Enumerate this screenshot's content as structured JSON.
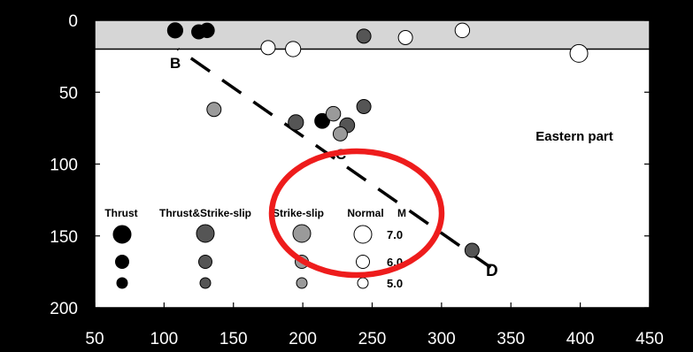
{
  "chart_data": {
    "type": "scatter",
    "title": "",
    "xlabel": "",
    "ylabel": "",
    "xlim": [
      50,
      450
    ],
    "ylim": [
      200,
      0
    ],
    "xticks": [
      "50",
      "100",
      "150",
      "200",
      "250",
      "300",
      "350",
      "400",
      "450"
    ],
    "yticks": [
      "0",
      "50",
      "100",
      "150",
      "200"
    ],
    "annotations": {
      "region": "Eastern part",
      "label_b": "B",
      "label_c": "C",
      "label_d": "D"
    },
    "shaded_band": {
      "y_from": 0,
      "y_to": 20
    },
    "profile_line": {
      "x": [
        110,
        340
      ],
      "y": [
        20,
        175
      ]
    },
    "legend": {
      "headers": [
        "Thrust",
        "Thrust&Strike-slip",
        "Strike-slip",
        "Normal",
        "M"
      ],
      "magnitudes": [
        "7.0",
        "6.0",
        "5.0"
      ]
    },
    "series": [
      {
        "name": "Thrust",
        "color": "#000000",
        "points": [
          {
            "x": 108,
            "y": 7,
            "m": 6.3
          },
          {
            "x": 125,
            "y": 8,
            "m": 6.0
          },
          {
            "x": 131,
            "y": 7,
            "m": 6.1
          },
          {
            "x": 214,
            "y": 70,
            "m": 6.2
          }
        ]
      },
      {
        "name": "Thrust&Strike-slip",
        "color": "#555555",
        "points": [
          {
            "x": 195,
            "y": 71,
            "m": 6.3
          },
          {
            "x": 232,
            "y": 73,
            "m": 6.2
          },
          {
            "x": 244,
            "y": 60,
            "m": 6.0
          },
          {
            "x": 244,
            "y": 11,
            "m": 6.0
          },
          {
            "x": 322,
            "y": 160,
            "m": 6.0
          }
        ]
      },
      {
        "name": "Strike-slip",
        "color": "#9a9a9a",
        "points": [
          {
            "x": 136,
            "y": 62,
            "m": 6.0
          },
          {
            "x": 222,
            "y": 65,
            "m": 6.1
          },
          {
            "x": 227,
            "y": 79,
            "m": 6.0
          }
        ]
      },
      {
        "name": "Normal",
        "color": "#ffffff",
        "points": [
          {
            "x": 175,
            "y": 19,
            "m": 6.0
          },
          {
            "x": 193,
            "y": 20,
            "m": 6.3
          },
          {
            "x": 274,
            "y": 12,
            "m": 6.0
          },
          {
            "x": 315,
            "y": 7,
            "m": 6.1
          },
          {
            "x": 399,
            "y": 23,
            "m": 7.0
          }
        ]
      }
    ]
  }
}
